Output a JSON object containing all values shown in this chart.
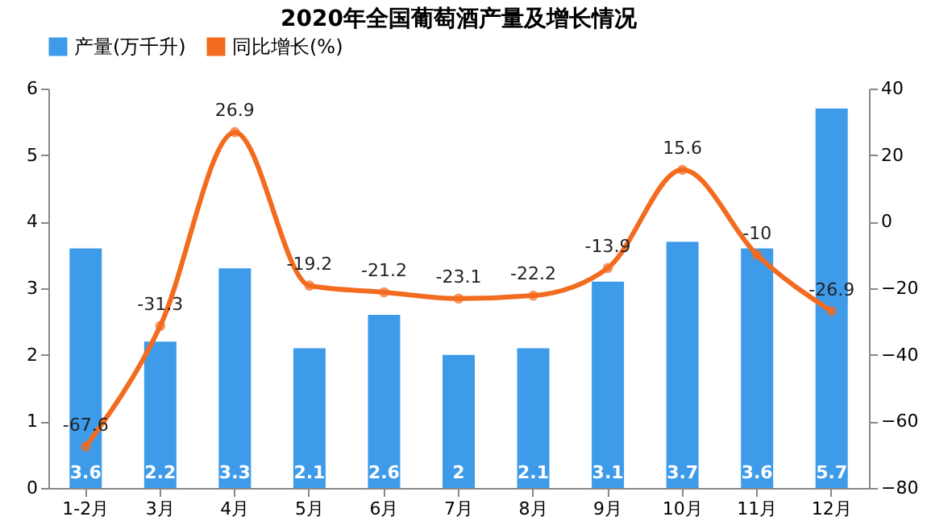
{
  "chart_data": {
    "type": "bar",
    "title": "2020年全国葡萄酒产量及增长情况",
    "categories": [
      "1-2月",
      "3月",
      "4月",
      "5月",
      "6月",
      "7月",
      "8月",
      "9月",
      "10月",
      "11月",
      "12月"
    ],
    "series": [
      {
        "name": "产量(万千升)",
        "color": "#3d9bea",
        "values": [
          3.6,
          2.2,
          3.3,
          2.1,
          2.6,
          2,
          2.1,
          3.1,
          3.7,
          3.6,
          5.7
        ]
      },
      {
        "name": "同比增长(%)",
        "type": "line",
        "axis": "y2",
        "color": "#f26b1f",
        "values": [
          -67.6,
          -31.3,
          26.9,
          -19.2,
          -21.2,
          -23.1,
          -22.2,
          -13.9,
          15.6,
          -10,
          -26.9
        ]
      }
    ],
    "ylim": [
      0,
      6
    ],
    "yticks": [
      0,
      1,
      2,
      3,
      4,
      5,
      6
    ],
    "y2lim": [
      -80,
      40
    ],
    "y2ticks": [
      -80,
      -60,
      -40,
      -20,
      0,
      20,
      40
    ],
    "data_labels": true,
    "legend": "top",
    "grid": false,
    "marker": "circle",
    "line_style": "solid"
  }
}
